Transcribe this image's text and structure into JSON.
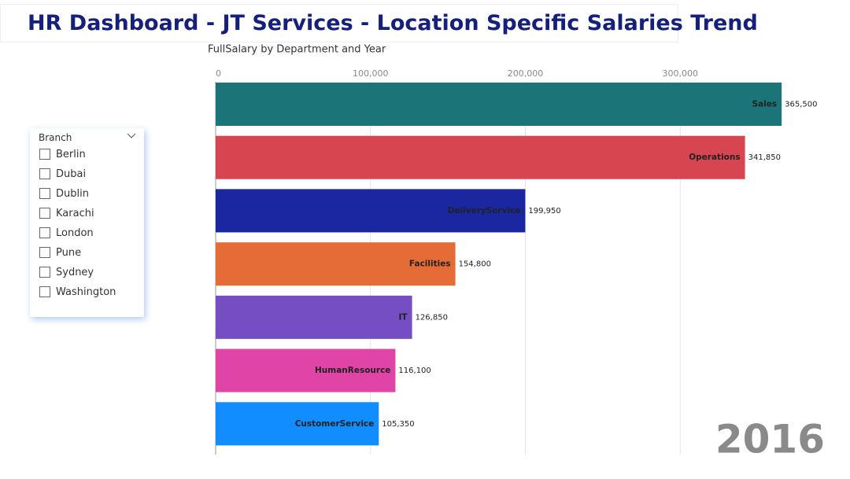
{
  "header": {
    "title": "HR Dashboard - JT Services - Location Specific Salaries Trend"
  },
  "slicer": {
    "title": "Branch",
    "items": [
      "Berlin",
      "Dubai",
      "Dublin",
      "Karachi",
      "London",
      "Pune",
      "Sydney",
      "Washington"
    ]
  },
  "chart_data": {
    "type": "bar",
    "orientation": "horizontal",
    "title": "FullSalary by Department and Year",
    "categories": [
      "Sales",
      "Operations",
      "DeliveryService",
      "Facilities",
      "IT",
      "HumanResource",
      "CustomerService"
    ],
    "values": [
      365500,
      341850,
      199950,
      154800,
      126850,
      116100,
      105350
    ],
    "value_labels": [
      "365,500",
      "341,850",
      "199,950",
      "154,800",
      "126,850",
      "116,100",
      "105,350"
    ],
    "colors": [
      "#1a7478",
      "#d64550",
      "#1a27a0",
      "#e66c37",
      "#744ec2",
      "#e044a7",
      "#118dff"
    ],
    "xlim": [
      0,
      370000
    ],
    "xticks": [
      0,
      {
        "value": 100000,
        "label": "100,000"
      },
      {
        "value": 200000,
        "label": "200,000"
      },
      {
        "value": 300000,
        "label": "300,000"
      }
    ],
    "grid": true,
    "annotation": "2016"
  }
}
